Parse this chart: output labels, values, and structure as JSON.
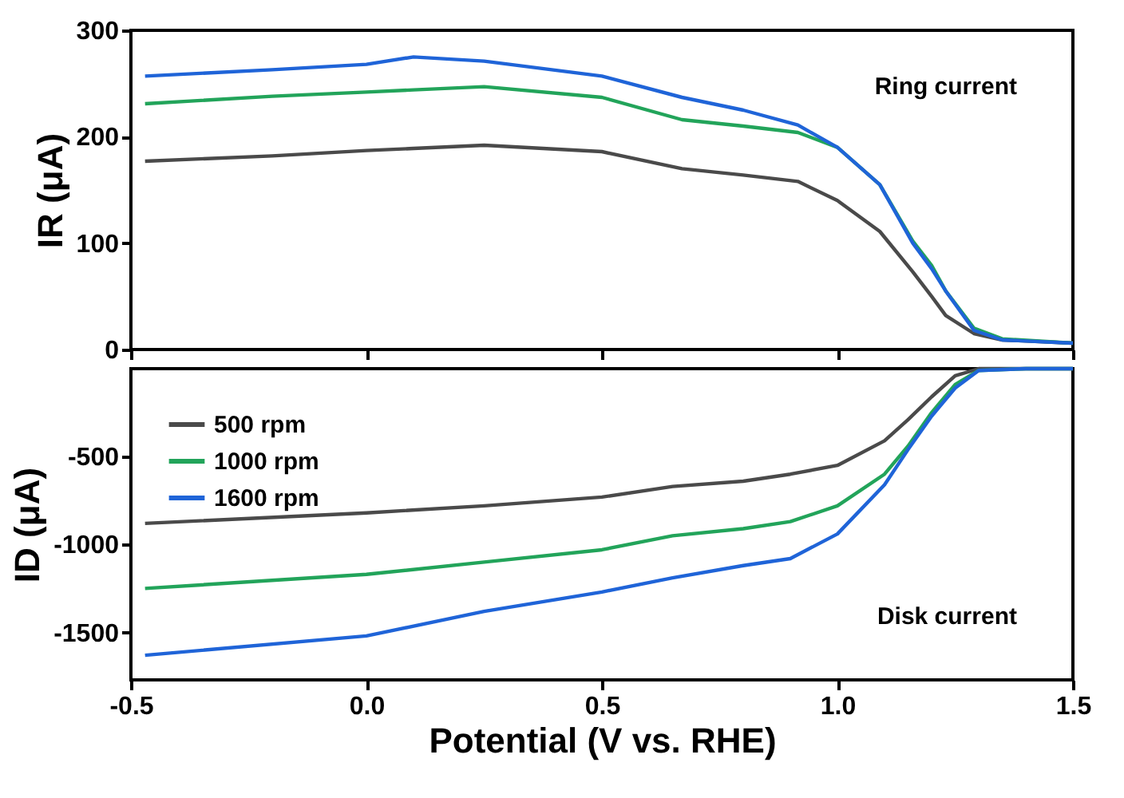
{
  "chart_data": [
    {
      "type": "line",
      "ylabel": "IR (μA)",
      "xlim": [
        -0.5,
        1.5
      ],
      "xticks": [
        -0.5,
        0,
        0.5,
        1,
        1.5
      ],
      "ylim": [
        0,
        300
      ],
      "yticks": [
        0,
        100,
        200,
        300
      ],
      "tick_labels": "y",
      "grid": false,
      "legend": false,
      "annotations": [
        "Ring current"
      ],
      "x": [
        -0.47,
        -0.2,
        0.0,
        0.1,
        0.25,
        0.5,
        0.67,
        0.8,
        0.916,
        1.0,
        1.09,
        1.16,
        1.2,
        1.23,
        1.29,
        1.35,
        1.5
      ],
      "series": [
        {
          "color": "#4a4a4a",
          "values": [
            177,
            182,
            187,
            189,
            192,
            186,
            170,
            164,
            158,
            140,
            111,
            73,
            50,
            32,
            15,
            9,
            6
          ]
        },
        {
          "color": "#22a45a",
          "values": [
            231,
            238,
            242,
            244,
            247,
            237,
            216,
            210,
            204,
            190,
            155,
            102,
            79,
            55,
            20,
            10,
            6
          ]
        },
        {
          "color": "#1f64d8",
          "values": [
            257,
            263,
            268,
            275,
            271,
            257,
            237,
            225,
            211,
            190,
            155,
            100,
            76,
            55,
            18,
            9,
            6
          ]
        }
      ]
    },
    {
      "type": "line",
      "xlabel": "Potential (V vs. RHE)",
      "ylabel": "ID (μA)",
      "xlim": [
        -0.5,
        1.5
      ],
      "xticks": [
        -0.5,
        {
          "value": 0,
          "label": "0.0"
        },
        0.5,
        {
          "value": 1,
          "label": "1.0"
        },
        1.5
      ],
      "ylim": [
        -1770,
        0
      ],
      "yticks": [
        {
          "value": -1500,
          "label": "-1500"
        },
        {
          "value": -1000,
          "label": "-1000"
        },
        -500
      ],
      "grid": false,
      "legend": "top left",
      "annotations": [
        "Disk current"
      ],
      "x": [
        -0.47,
        0.0,
        0.25,
        0.5,
        0.65,
        0.8,
        0.9,
        1.0,
        1.1,
        1.15,
        1.2,
        1.25,
        1.3,
        1.4,
        1.5
      ],
      "series": [
        {
          "name": "500 rpm",
          "color": "#4a4a4a",
          "values": [
            -880,
            -820,
            -780,
            -730,
            -670,
            -640,
            -600,
            -550,
            -410,
            -290,
            -160,
            -40,
            0,
            0,
            0
          ]
        },
        {
          "name": "1000 rpm",
          "color": "#22a45a",
          "values": [
            -1250,
            -1170,
            -1100,
            -1030,
            -950,
            -910,
            -870,
            -780,
            -600,
            -440,
            -250,
            -90,
            -10,
            0,
            0
          ]
        },
        {
          "name": "1600 rpm",
          "color": "#1f64d8",
          "values": [
            -1630,
            -1520,
            -1380,
            -1270,
            -1190,
            -1120,
            -1080,
            -940,
            -660,
            -460,
            -270,
            -110,
            -10,
            0,
            0
          ]
        }
      ]
    }
  ]
}
